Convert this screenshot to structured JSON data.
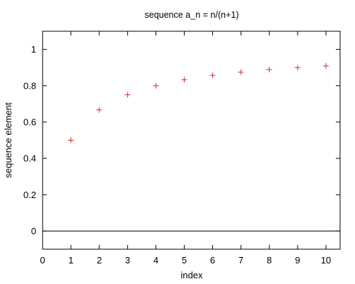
{
  "chart_data": {
    "type": "scatter",
    "title": "sequence a_n = n/(n+1)",
    "xlabel": "index",
    "ylabel": "sequence element",
    "xlim": [
      0,
      10.5
    ],
    "ylim": [
      -0.1,
      1.1
    ],
    "x_ticks": [
      0,
      1,
      2,
      3,
      4,
      5,
      6,
      7,
      8,
      9,
      10
    ],
    "y_ticks": [
      0,
      0.2,
      0.4,
      0.6,
      0.8,
      1
    ],
    "x_tick_labels": [
      "0",
      "1",
      "2",
      "3",
      "4",
      "5",
      "6",
      "7",
      "8",
      "9",
      "10"
    ],
    "y_tick_labels": [
      "0",
      "0.2",
      "0.4",
      "0.6",
      "0.8",
      "1"
    ],
    "zero_line": true,
    "marker": "plus",
    "grid": false,
    "series": [
      {
        "color": "#d62728",
        "x": [
          1,
          2,
          3,
          4,
          5,
          6,
          7,
          8,
          9,
          10
        ],
        "y": [
          0.5,
          0.667,
          0.75,
          0.8,
          0.833,
          0.857,
          0.875,
          0.889,
          0.9,
          0.909
        ]
      }
    ]
  }
}
